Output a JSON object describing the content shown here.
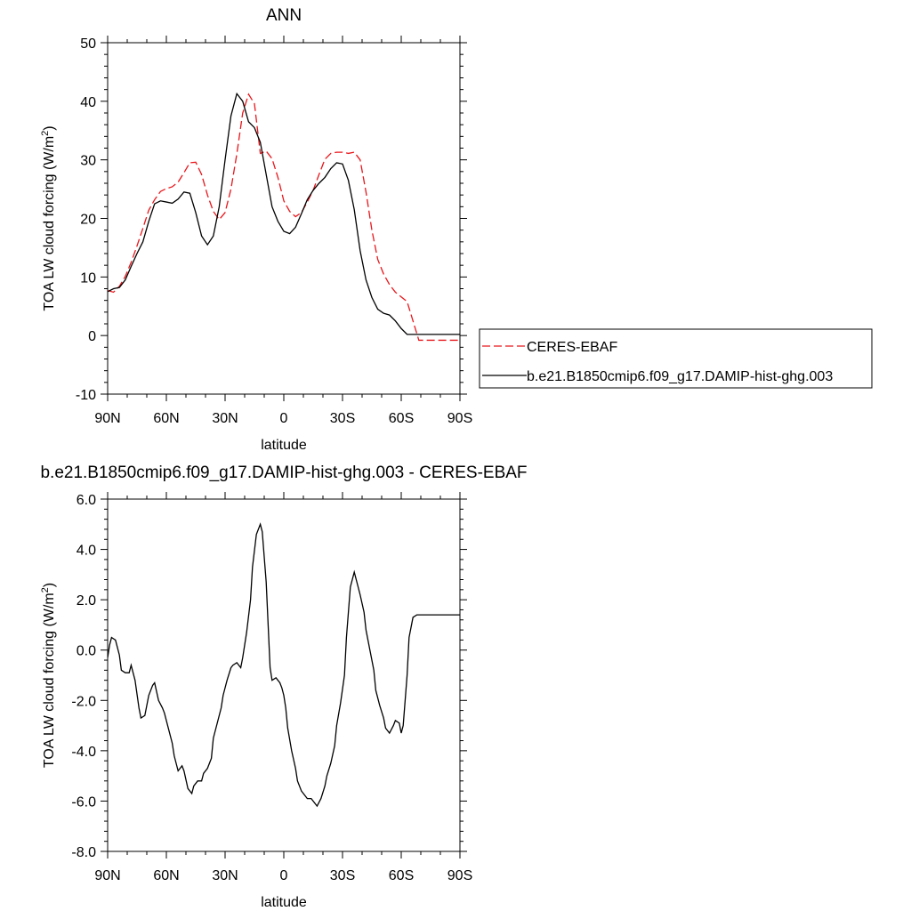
{
  "chart_data": [
    {
      "type": "line",
      "title": "ANN",
      "xlabel": "latitude",
      "ylabel": "TOA LW cloud forcing (W/m",
      "ylabel_sup": "2",
      "ylabel_end": ")",
      "xlim": [
        90,
        -90
      ],
      "ylim": [
        -10,
        50
      ],
      "yticks": [
        -10,
        0,
        10,
        20,
        30,
        40,
        50
      ],
      "ytick_labels": [
        "-10",
        "0",
        "10",
        "20",
        "30",
        "40",
        "50"
      ],
      "xticks": [
        90,
        60,
        30,
        0,
        -30,
        -60,
        -90
      ],
      "xtick_labels": [
        "90N",
        "60N",
        "30N",
        "0",
        "30S",
        "60S",
        "90S"
      ],
      "legend_position": "right",
      "series": [
        {
          "name": "CERES-EBAF",
          "color": "#e8161b",
          "dash": "dashed",
          "x": [
            90,
            87,
            84,
            81,
            78,
            75,
            72,
            69,
            66,
            63,
            60,
            57,
            54,
            51,
            48,
            45,
            42,
            39,
            36,
            33,
            30,
            27,
            24,
            21,
            18,
            15,
            12,
            9,
            6,
            3,
            0,
            -3,
            -6,
            -9,
            -12,
            -15,
            -18,
            -21,
            -24,
            -27,
            -30,
            -33,
            -36,
            -39,
            -42,
            -45,
            -48,
            -51,
            -54,
            -57,
            -60,
            -63,
            -66,
            -69,
            -72,
            -75,
            -78,
            -81,
            -84,
            -87,
            -90
          ],
          "y": [
            7.7,
            7.4,
            8.4,
            10.1,
            12.5,
            15.3,
            18.3,
            21.4,
            23.2,
            24.6,
            25.1,
            25.4,
            26.2,
            27.8,
            29.5,
            29.6,
            27.5,
            24.0,
            21.2,
            19.8,
            21.0,
            25.0,
            31.0,
            38.0,
            41.2,
            39.6,
            31.1,
            31.5,
            30.2,
            27.0,
            23.0,
            21.2,
            20.3,
            21.0,
            22.8,
            24.8,
            27.5,
            30.1,
            31.1,
            31.3,
            31.3,
            31.1,
            31.3,
            30.0,
            24.5,
            18.0,
            13.0,
            10.5,
            8.7,
            7.4,
            6.6,
            5.8,
            2.5,
            -0.8,
            -0.8,
            -0.8,
            -0.8,
            -0.8,
            -0.8,
            -0.8,
            -0.8
          ]
        },
        {
          "name": "b.e21.B1850cmip6.f09_g17.DAMIP-hist-ghg.003",
          "color": "#000000",
          "dash": "solid",
          "x": [
            90,
            87,
            84,
            81,
            78,
            75,
            72,
            69,
            66,
            63,
            60,
            57,
            54,
            51,
            48,
            45,
            42,
            39,
            36,
            33,
            30,
            27,
            24,
            21,
            18,
            15,
            12,
            9,
            6,
            3,
            0,
            -3,
            -6,
            -9,
            -12,
            -15,
            -18,
            -21,
            -24,
            -27,
            -30,
            -33,
            -36,
            -39,
            -42,
            -45,
            -48,
            -51,
            -54,
            -57,
            -60,
            -63,
            -66,
            -69,
            -72,
            -75,
            -78,
            -81,
            -84,
            -87,
            -90
          ],
          "y": [
            7.5,
            8.0,
            8.2,
            9.5,
            11.8,
            14.0,
            16.0,
            19.5,
            22.5,
            23.0,
            22.8,
            22.6,
            23.3,
            24.5,
            24.3,
            21.0,
            17.0,
            15.5,
            17.0,
            22.0,
            30.0,
            37.5,
            41.3,
            40.0,
            36.5,
            35.5,
            33.0,
            27.5,
            22.0,
            19.5,
            17.8,
            17.4,
            18.5,
            20.8,
            23.2,
            24.8,
            26.0,
            27.0,
            28.5,
            29.5,
            29.3,
            26.5,
            21.5,
            14.5,
            9.5,
            6.5,
            4.5,
            3.8,
            3.5,
            2.5,
            1.2,
            0.2,
            0.2,
            0.2,
            0.2,
            0.2,
            0.2,
            0.2,
            0.2,
            0.2,
            0.2
          ]
        }
      ]
    },
    {
      "type": "line",
      "title": "b.e21.B1850cmip6.f09_g17.DAMIP-hist-ghg.003 - CERES-EBAF",
      "xlabel": "latitude",
      "ylabel": "TOA LW cloud forcing (W/m",
      "ylabel_sup": "2",
      "ylabel_end": ")",
      "xlim": [
        90,
        -90
      ],
      "ylim": [
        -8,
        6
      ],
      "yticks": [
        -8,
        -6,
        -4,
        -2,
        0,
        2,
        4,
        6
      ],
      "ytick_labels": [
        "-8.0",
        "-6.0",
        "-4.0",
        "-2.0",
        "0.0",
        "2.0",
        "4.0",
        "6.0"
      ],
      "xticks": [
        90,
        60,
        30,
        0,
        -30,
        -60,
        -90
      ],
      "xtick_labels": [
        "90N",
        "60N",
        "30N",
        "0",
        "30S",
        "60S",
        "90S"
      ],
      "series": [
        {
          "color": "#000000",
          "dash": "solid",
          "x": [
            90,
            89,
            88,
            86,
            84,
            83,
            81,
            79,
            78,
            76,
            74,
            73,
            71,
            69,
            67,
            66,
            64,
            62,
            61,
            59,
            57,
            56,
            54,
            52,
            51,
            49,
            47,
            46,
            44,
            42,
            41,
            39,
            37,
            36,
            34,
            32,
            31,
            29,
            27,
            26,
            24,
            22,
            21,
            19,
            17,
            16,
            14,
            12,
            11,
            9,
            7,
            6,
            4,
            2,
            1,
            0,
            -1,
            -2,
            -4,
            -6,
            -7,
            -9,
            -11,
            -12,
            -14,
            -16,
            -17,
            -19,
            -21,
            -22,
            -24,
            -26,
            -27,
            -29,
            -31,
            -32,
            -34,
            -36,
            -37,
            -39,
            -41,
            -42,
            -44,
            -46,
            -47,
            -49,
            -51,
            -52,
            -54,
            -56,
            -57,
            -59,
            -60,
            -61,
            -63,
            -64,
            -66,
            -68,
            -69,
            -71,
            -73,
            -74,
            -76,
            -78,
            -79,
            -81,
            -82,
            -84,
            -85,
            -86,
            -87,
            -88,
            -89,
            -90
          ],
          "y": [
            -0.3,
            0.2,
            0.5,
            0.4,
            -0.2,
            -0.8,
            -0.9,
            -0.9,
            -0.6,
            -1.2,
            -2.3,
            -2.7,
            -2.6,
            -1.8,
            -1.4,
            -1.3,
            -2.0,
            -2.3,
            -2.5,
            -3.1,
            -3.7,
            -4.2,
            -4.8,
            -4.6,
            -4.8,
            -5.5,
            -5.7,
            -5.4,
            -5.2,
            -5.2,
            -4.9,
            -4.7,
            -4.3,
            -3.5,
            -2.9,
            -2.3,
            -1.8,
            -1.2,
            -0.7,
            -0.6,
            -0.5,
            -0.7,
            -0.3,
            0.7,
            2.0,
            3.3,
            4.6,
            5.0,
            4.7,
            2.7,
            -0.7,
            -1.2,
            -1.1,
            -1.3,
            -1.5,
            -1.8,
            -2.3,
            -3.1,
            -4.0,
            -4.7,
            -5.2,
            -5.6,
            -5.8,
            -5.9,
            -5.9,
            -6.1,
            -6.2,
            -5.9,
            -5.4,
            -5.0,
            -4.5,
            -3.8,
            -3.0,
            -2.1,
            -1.0,
            0.5,
            2.5,
            3.1,
            2.8,
            2.2,
            1.5,
            0.8,
            0.0,
            -0.8,
            -1.6,
            -2.2,
            -2.7,
            -3.1,
            -3.3,
            -3.0,
            -2.8,
            -2.9,
            -3.3,
            -3.0,
            -1.0,
            0.5,
            1.3,
            1.4,
            1.4,
            1.4,
            1.4,
            1.4,
            1.4,
            1.4,
            1.4,
            1.4,
            1.4,
            1.4,
            1.4,
            1.4,
            1.4,
            1.4,
            1.4,
            1.4
          ]
        }
      ]
    }
  ]
}
